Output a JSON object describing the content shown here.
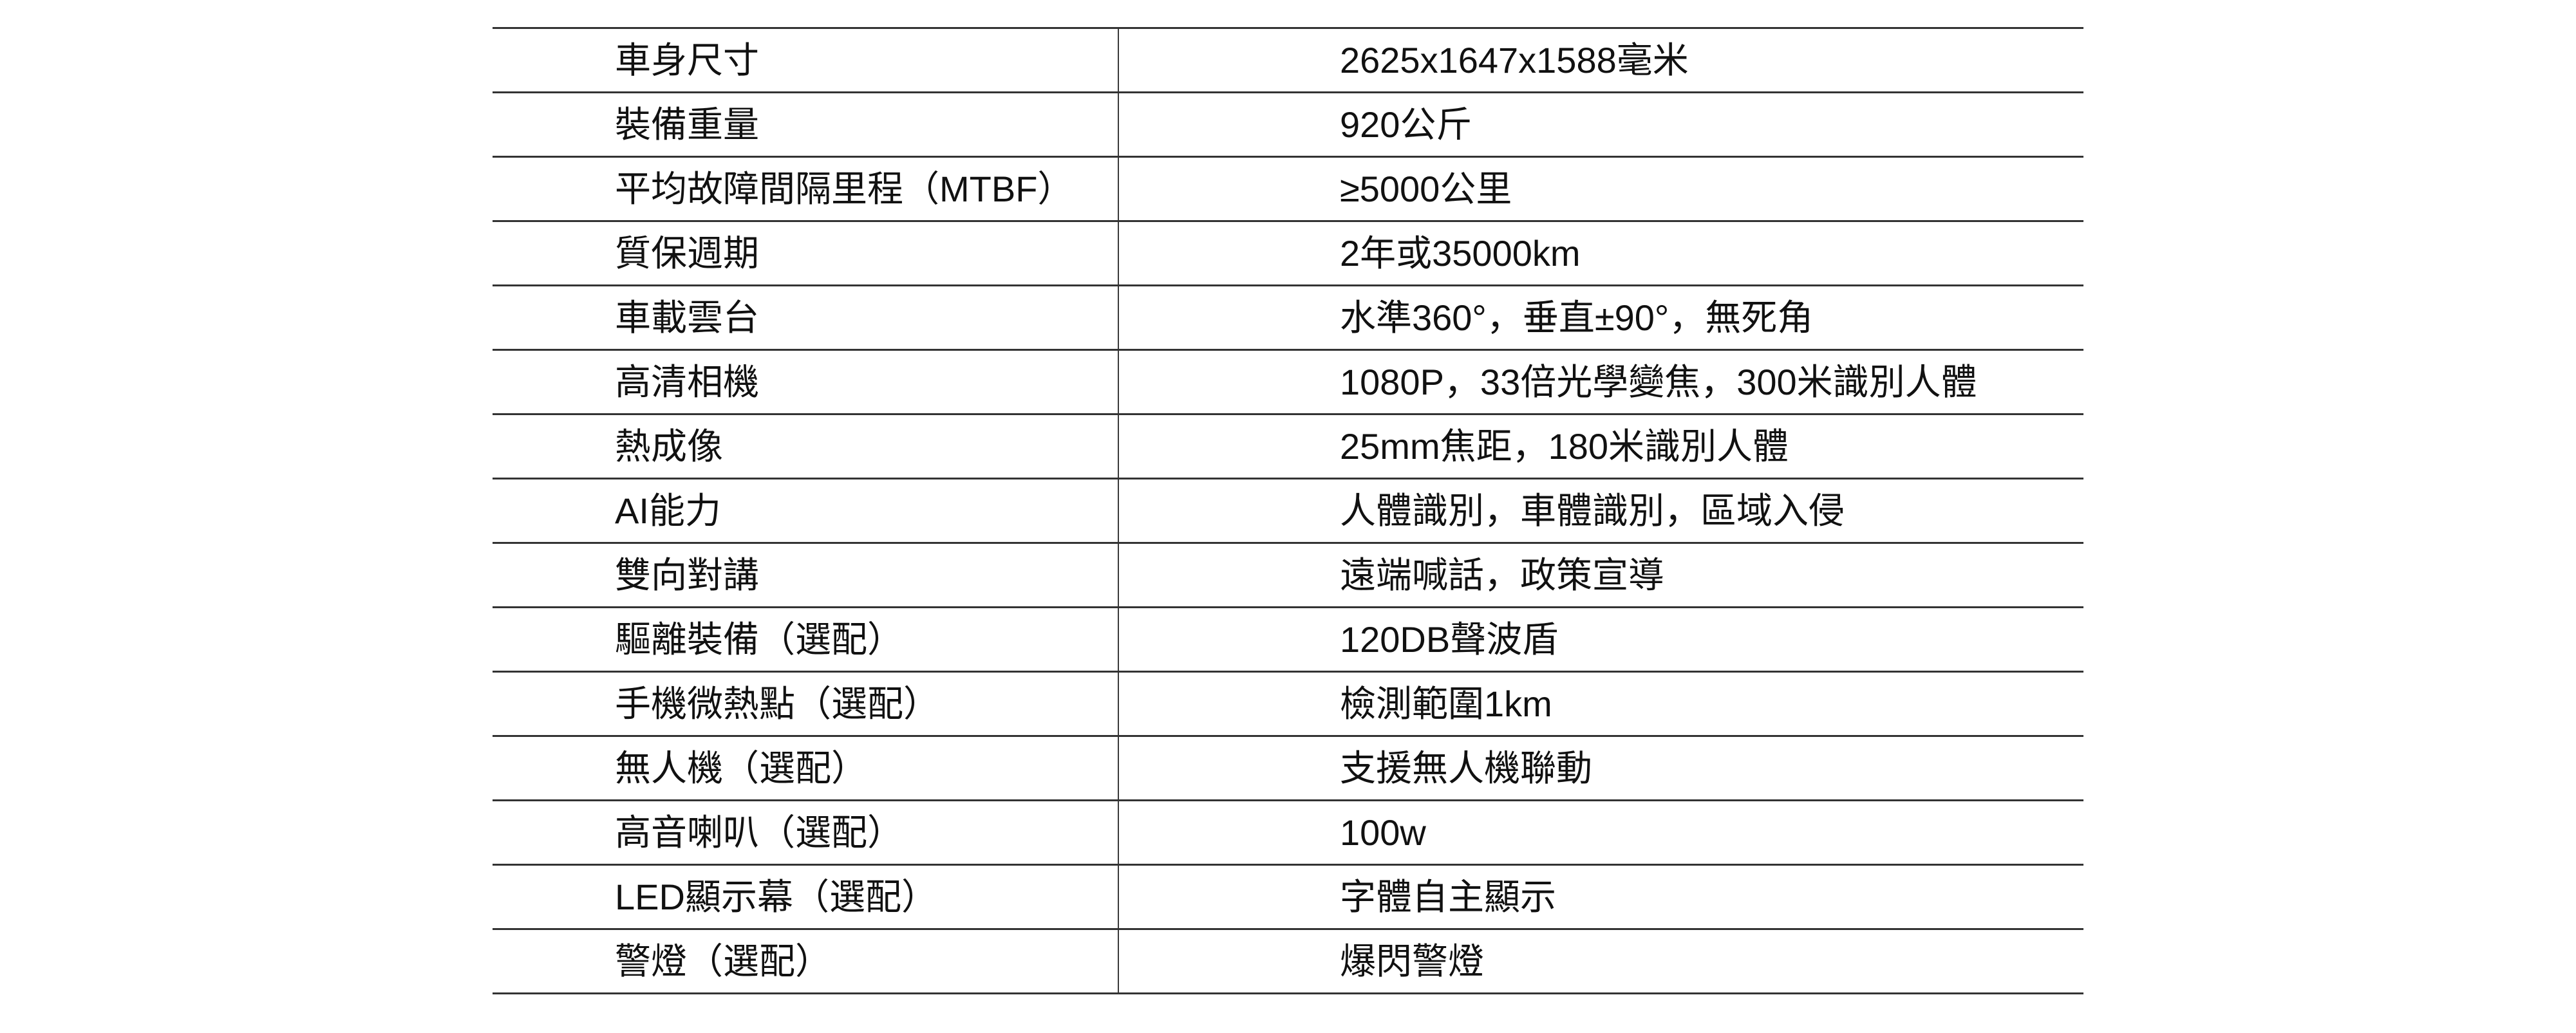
{
  "colors": {
    "background": "#ffffff",
    "rule_line": "#333333",
    "text": "#111111"
  },
  "table": {
    "rows": [
      {
        "label": "車身尺寸",
        "value": "2625x1647x1588毫米"
      },
      {
        "label": "裝備重量",
        "value": "920公斤"
      },
      {
        "label": "平均故障間隔里程（MTBF）",
        "value": "≥5000公里"
      },
      {
        "label": "質保週期",
        "value": "2年或35000km"
      },
      {
        "label": "車載雲台",
        "value": "水準360°，垂直±90°，無死角"
      },
      {
        "label": "高清相機",
        "value": "1080P，33倍光學變焦，300米識別人體"
      },
      {
        "label": "熱成像",
        "value": "25mm焦距，180米識別人體"
      },
      {
        "label": "AI能力",
        "value": "人體識別，車體識別，區域入侵"
      },
      {
        "label": "雙向對講",
        "value": "遠端喊話，政策宣導"
      },
      {
        "label": "驅離裝備（選配）",
        "value": "120DB聲波盾"
      },
      {
        "label": "手機微熱點（選配）",
        "value": "檢測範圍1km"
      },
      {
        "label": "無人機（選配）",
        "value": "支援無人機聯動"
      },
      {
        "label": "高音喇叭（選配）",
        "value": "100w"
      },
      {
        "label": "LED顯示幕（選配）",
        "value": "字體自主顯示"
      },
      {
        "label": "警燈（選配）",
        "value": "爆閃警燈"
      }
    ]
  }
}
